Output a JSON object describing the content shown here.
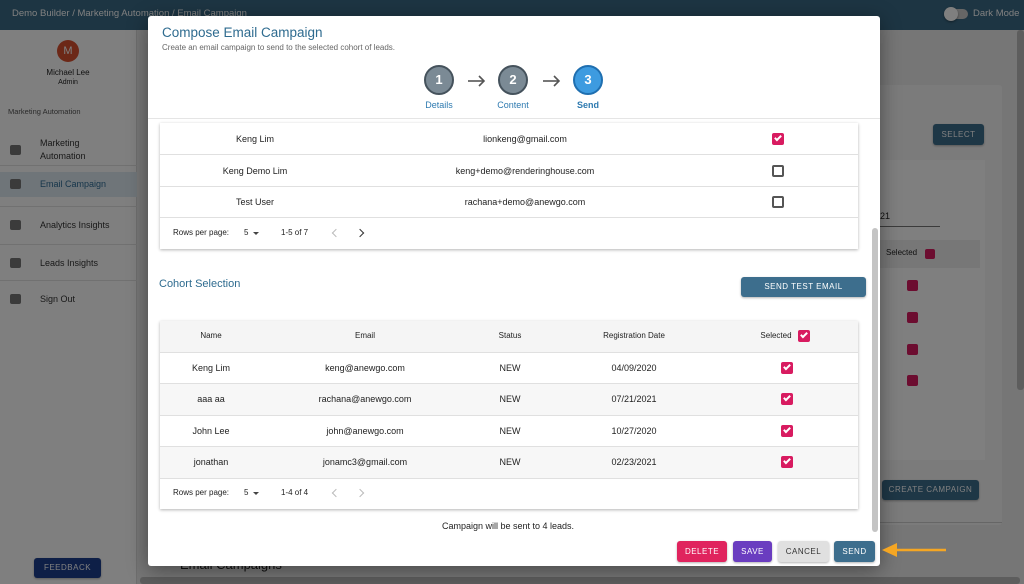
{
  "top_bar": {
    "breadcrumb": "Demo Builder / Marketing Automation / Email Campaign",
    "dark_mode": "Dark Mode"
  },
  "sidebar": {
    "avatar": "M",
    "user_name": "Michael Lee",
    "user_role": "Admin",
    "section": "Marketing Automation",
    "nav": [
      "Marketing Automation",
      "Email Campaign",
      "Analytics Insights",
      "Leads Insights",
      "Sign Out"
    ],
    "feedback": "FEEDBACK"
  },
  "background": {
    "select_button": "SELECT",
    "date_fragment": "21",
    "selected_header": "Selected",
    "create_button": "CREATE CAMPAIGN",
    "section_title": "Email Campaigns"
  },
  "modal": {
    "title": "Compose Email Campaign",
    "subtitle": "Create an email campaign to send to the selected cohort of leads.",
    "steps": [
      {
        "number": "1",
        "label": "Details"
      },
      {
        "number": "2",
        "label": "Content"
      },
      {
        "number": "3",
        "label": "Send"
      }
    ],
    "leads_table": {
      "rows": [
        {
          "name": "Keng Lim",
          "email": "lionkeng@gmail.com",
          "selected": true
        },
        {
          "name": "Keng Demo Lim",
          "email": "keng+demo@renderinghouse.com",
          "selected": false
        },
        {
          "name": "Test User",
          "email": "rachana+demo@anewgo.com",
          "selected": false
        }
      ],
      "pagination": {
        "rows_per_page_label": "Rows per page:",
        "rows_per_page": "5",
        "range": "1-5 of 7"
      }
    },
    "cohort_title": "Cohort Selection",
    "send_test_button": "SEND TEST EMAIL",
    "cohort_table": {
      "headers": [
        "Name",
        "Email",
        "Status",
        "Registration Date",
        "Selected"
      ],
      "all_selected": true,
      "rows": [
        {
          "name": "Keng Lim",
          "email": "keng@anewgo.com",
          "status": "NEW",
          "registration_date": "04/09/2020",
          "selected": true
        },
        {
          "name": "aaa aa",
          "email": "rachana@anewgo.com",
          "status": "NEW",
          "registration_date": "07/21/2021",
          "selected": true
        },
        {
          "name": "John Lee",
          "email": "john@anewgo.com",
          "status": "NEW",
          "registration_date": "10/27/2020",
          "selected": true
        },
        {
          "name": "jonathan",
          "email": "jonamc3@gmail.com",
          "status": "NEW",
          "registration_date": "02/23/2021",
          "selected": true
        }
      ],
      "pagination": {
        "rows_per_page_label": "Rows per page:",
        "rows_per_page": "5",
        "range": "1-4 of 4"
      }
    },
    "summary": "Campaign will be sent to 4 leads.",
    "buttons": [
      "DELETE",
      "SAVE",
      "CANCEL",
      "SEND"
    ]
  }
}
